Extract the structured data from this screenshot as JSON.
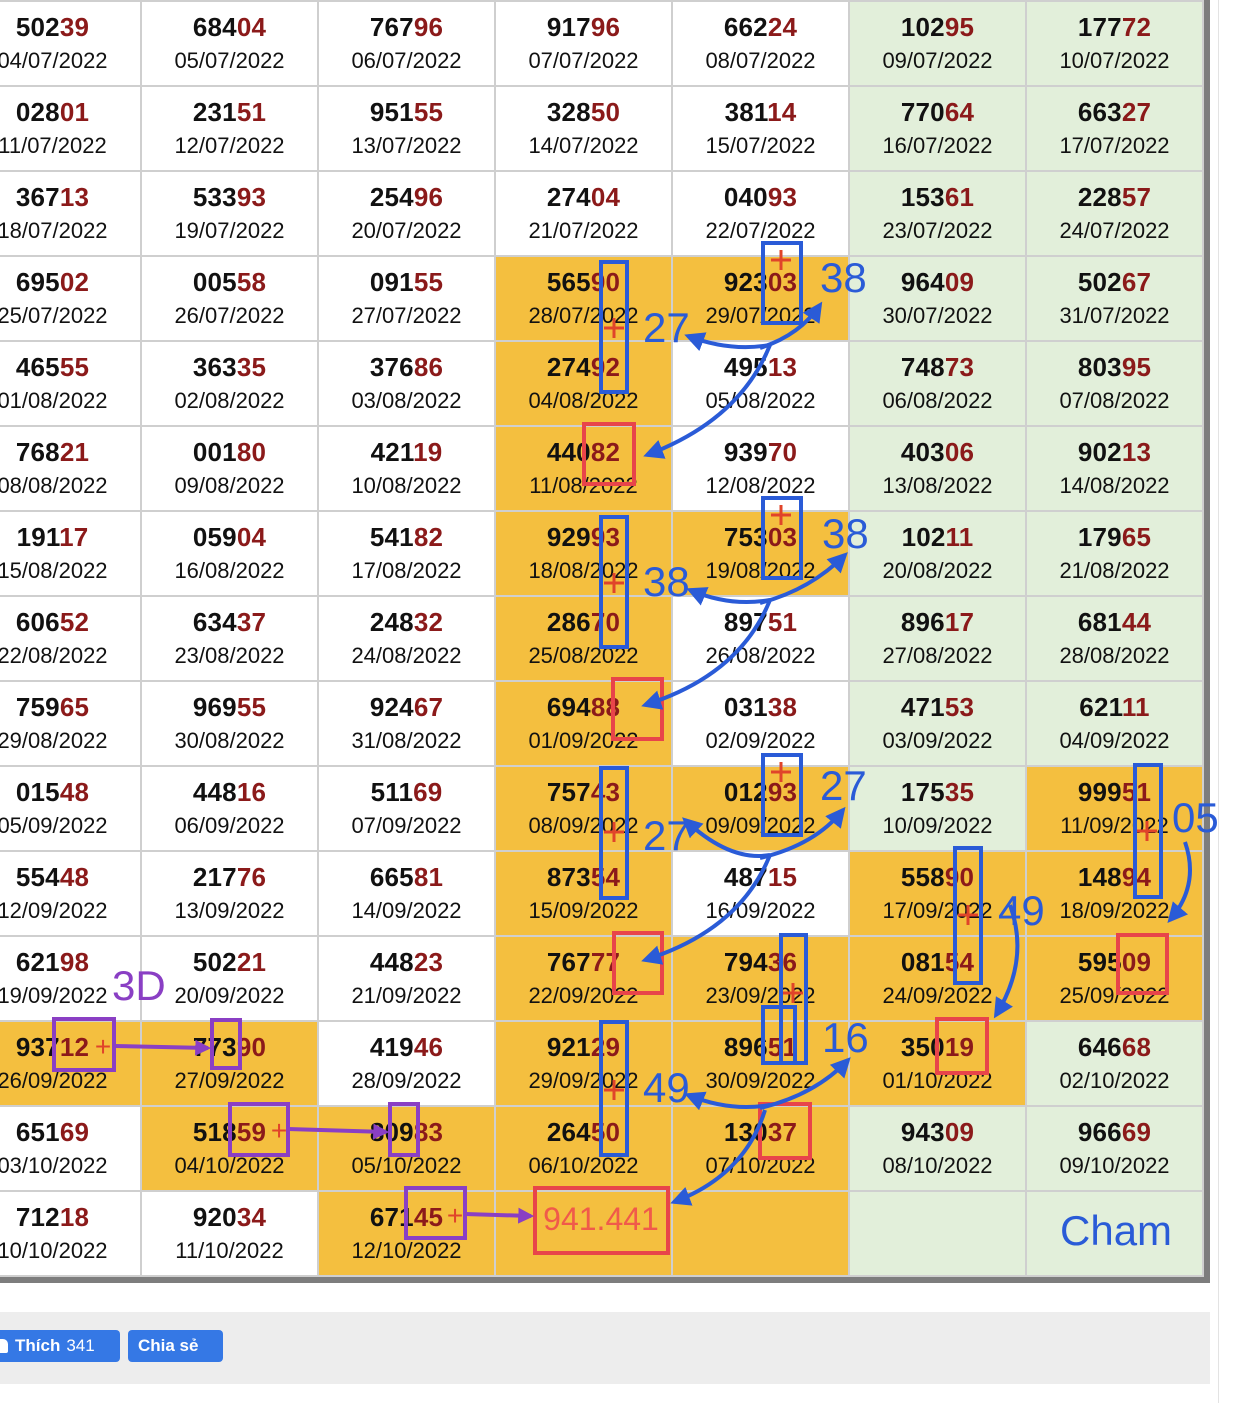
{
  "colors": {
    "white": "#ffffff",
    "green": "#e2efda",
    "orange": "#f4bf3f",
    "tail_red": "#8b1a1a",
    "annot_blue": "#2a5bd7",
    "annot_red": "#e8444a",
    "annot_purple": "#8a3fc4",
    "plus_red": "#e0442a"
  },
  "grid": {
    "rows": [
      [
        {
          "n": "50239",
          "d": "04/07/2022",
          "bg": "white"
        },
        {
          "n": "68404",
          "d": "05/07/2022",
          "bg": "white"
        },
        {
          "n": "76796",
          "d": "06/07/2022",
          "bg": "white"
        },
        {
          "n": "91796",
          "d": "07/07/2022",
          "bg": "white"
        },
        {
          "n": "66224",
          "d": "08/07/2022",
          "bg": "white"
        },
        {
          "n": "10295",
          "d": "09/07/2022",
          "bg": "green"
        },
        {
          "n": "17772",
          "d": "10/07/2022",
          "bg": "green"
        }
      ],
      [
        {
          "n": "02801",
          "d": "11/07/2022",
          "bg": "white"
        },
        {
          "n": "23151",
          "d": "12/07/2022",
          "bg": "white"
        },
        {
          "n": "95155",
          "d": "13/07/2022",
          "bg": "white"
        },
        {
          "n": "32850",
          "d": "14/07/2022",
          "bg": "white"
        },
        {
          "n": "38114",
          "d": "15/07/2022",
          "bg": "white"
        },
        {
          "n": "77064",
          "d": "16/07/2022",
          "bg": "green"
        },
        {
          "n": "66327",
          "d": "17/07/2022",
          "bg": "green"
        }
      ],
      [
        {
          "n": "36713",
          "d": "18/07/2022",
          "bg": "white"
        },
        {
          "n": "53393",
          "d": "19/07/2022",
          "bg": "white"
        },
        {
          "n": "25496",
          "d": "20/07/2022",
          "bg": "white"
        },
        {
          "n": "27404",
          "d": "21/07/2022",
          "bg": "white"
        },
        {
          "n": "04093",
          "d": "22/07/2022",
          "bg": "white"
        },
        {
          "n": "15361",
          "d": "23/07/2022",
          "bg": "green"
        },
        {
          "n": "22857",
          "d": "24/07/2022",
          "bg": "green"
        }
      ],
      [
        {
          "n": "69502",
          "d": "25/07/2022",
          "bg": "white"
        },
        {
          "n": "00558",
          "d": "26/07/2022",
          "bg": "white"
        },
        {
          "n": "09155",
          "d": "27/07/2022",
          "bg": "white"
        },
        {
          "n": "56590",
          "d": "28/07/2022",
          "bg": "orange"
        },
        {
          "n": "92303",
          "d": "29/07/2022",
          "bg": "orange"
        },
        {
          "n": "96409",
          "d": "30/07/2022",
          "bg": "green"
        },
        {
          "n": "50267",
          "d": "31/07/2022",
          "bg": "green"
        }
      ],
      [
        {
          "n": "46555",
          "d": "01/08/2022",
          "bg": "white"
        },
        {
          "n": "36335",
          "d": "02/08/2022",
          "bg": "white"
        },
        {
          "n": "37686",
          "d": "03/08/2022",
          "bg": "white"
        },
        {
          "n": "27492",
          "d": "04/08/2022",
          "bg": "orange"
        },
        {
          "n": "49513",
          "d": "05/08/2022",
          "bg": "white"
        },
        {
          "n": "74873",
          "d": "06/08/2022",
          "bg": "green"
        },
        {
          "n": "80395",
          "d": "07/08/2022",
          "bg": "green"
        }
      ],
      [
        {
          "n": "76821",
          "d": "08/08/2022",
          "bg": "white"
        },
        {
          "n": "00180",
          "d": "09/08/2022",
          "bg": "white"
        },
        {
          "n": "42119",
          "d": "10/08/2022",
          "bg": "white"
        },
        {
          "n": "44082",
          "d": "11/08/2022",
          "bg": "orange"
        },
        {
          "n": "93970",
          "d": "12/08/2022",
          "bg": "white"
        },
        {
          "n": "40306",
          "d": "13/08/2022",
          "bg": "green"
        },
        {
          "n": "90213",
          "d": "14/08/2022",
          "bg": "green"
        }
      ],
      [
        {
          "n": "19117",
          "d": "15/08/2022",
          "bg": "white"
        },
        {
          "n": "05904",
          "d": "16/08/2022",
          "bg": "white"
        },
        {
          "n": "54182",
          "d": "17/08/2022",
          "bg": "white"
        },
        {
          "n": "92993",
          "d": "18/08/2022",
          "bg": "orange"
        },
        {
          "n": "75303",
          "d": "19/08/2022",
          "bg": "orange"
        },
        {
          "n": "10211",
          "d": "20/08/2022",
          "bg": "green"
        },
        {
          "n": "17965",
          "d": "21/08/2022",
          "bg": "green"
        }
      ],
      [
        {
          "n": "60652",
          "d": "22/08/2022",
          "bg": "white"
        },
        {
          "n": "63437",
          "d": "23/08/2022",
          "bg": "white"
        },
        {
          "n": "24832",
          "d": "24/08/2022",
          "bg": "white"
        },
        {
          "n": "28670",
          "d": "25/08/2022",
          "bg": "orange"
        },
        {
          "n": "89751",
          "d": "26/08/2022",
          "bg": "white"
        },
        {
          "n": "89617",
          "d": "27/08/2022",
          "bg": "green"
        },
        {
          "n": "68144",
          "d": "28/08/2022",
          "bg": "green"
        }
      ],
      [
        {
          "n": "75965",
          "d": "29/08/2022",
          "bg": "white"
        },
        {
          "n": "96955",
          "d": "30/08/2022",
          "bg": "white"
        },
        {
          "n": "92467",
          "d": "31/08/2022",
          "bg": "white"
        },
        {
          "n": "69488",
          "d": "01/09/2022",
          "bg": "orange"
        },
        {
          "n": "03138",
          "d": "02/09/2022",
          "bg": "white"
        },
        {
          "n": "47153",
          "d": "03/09/2022",
          "bg": "green"
        },
        {
          "n": "62111",
          "d": "04/09/2022",
          "bg": "green"
        }
      ],
      [
        {
          "n": "01548",
          "d": "05/09/2022",
          "bg": "white"
        },
        {
          "n": "44816",
          "d": "06/09/2022",
          "bg": "white"
        },
        {
          "n": "51169",
          "d": "07/09/2022",
          "bg": "white"
        },
        {
          "n": "75743",
          "d": "08/09/2022",
          "bg": "orange"
        },
        {
          "n": "01293",
          "d": "09/09/2022",
          "bg": "orange"
        },
        {
          "n": "17535",
          "d": "10/09/2022",
          "bg": "green"
        },
        {
          "n": "99951",
          "d": "11/09/2022",
          "bg": "orange"
        }
      ],
      [
        {
          "n": "55448",
          "d": "12/09/2022",
          "bg": "white"
        },
        {
          "n": "21776",
          "d": "13/09/2022",
          "bg": "white"
        },
        {
          "n": "66581",
          "d": "14/09/2022",
          "bg": "white"
        },
        {
          "n": "87354",
          "d": "15/09/2022",
          "bg": "orange"
        },
        {
          "n": "48715",
          "d": "16/09/2022",
          "bg": "white"
        },
        {
          "n": "55890",
          "d": "17/09/2022",
          "bg": "orange"
        },
        {
          "n": "14894",
          "d": "18/09/2022",
          "bg": "orange"
        }
      ],
      [
        {
          "n": "62198",
          "d": "19/09/2022",
          "bg": "white"
        },
        {
          "n": "50221",
          "d": "20/09/2022",
          "bg": "white"
        },
        {
          "n": "44823",
          "d": "21/09/2022",
          "bg": "white"
        },
        {
          "n": "76777",
          "d": "22/09/2022",
          "bg": "orange"
        },
        {
          "n": "79436",
          "d": "23/09/2022",
          "bg": "orange"
        },
        {
          "n": "08154",
          "d": "24/09/2022",
          "bg": "orange"
        },
        {
          "n": "59509",
          "d": "25/09/2022",
          "bg": "orange"
        }
      ],
      [
        {
          "n": "93712",
          "d": "26/09/2022",
          "bg": "orange"
        },
        {
          "n": "77390",
          "d": "27/09/2022",
          "bg": "orange"
        },
        {
          "n": "41946",
          "d": "28/09/2022",
          "bg": "white"
        },
        {
          "n": "92129",
          "d": "29/09/2022",
          "bg": "orange"
        },
        {
          "n": "89651",
          "d": "30/09/2022",
          "bg": "orange"
        },
        {
          "n": "35019",
          "d": "01/10/2022",
          "bg": "orange"
        },
        {
          "n": "64668",
          "d": "02/10/2022",
          "bg": "green"
        }
      ],
      [
        {
          "n": "65169",
          "d": "03/10/2022",
          "bg": "white"
        },
        {
          "n": "51859",
          "d": "04/10/2022",
          "bg": "orange"
        },
        {
          "n": "80983",
          "d": "05/10/2022",
          "bg": "orange"
        },
        {
          "n": "26450",
          "d": "06/10/2022",
          "bg": "orange"
        },
        {
          "n": "13037",
          "d": "07/10/2022",
          "bg": "orange"
        },
        {
          "n": "94309",
          "d": "08/10/2022",
          "bg": "green"
        },
        {
          "n": "96669",
          "d": "09/10/2022",
          "bg": "green"
        }
      ],
      [
        {
          "n": "71218",
          "d": "10/10/2022",
          "bg": "white"
        },
        {
          "n": "92034",
          "d": "11/10/2022",
          "bg": "white"
        },
        {
          "n": "67145",
          "d": "12/10/2022",
          "bg": "orange"
        },
        {
          "n": "",
          "d": "",
          "bg": "orange"
        },
        {
          "n": "",
          "d": "",
          "bg": "orange"
        },
        {
          "n": "",
          "d": "",
          "bg": "green"
        },
        {
          "n": "",
          "d": "",
          "bg": "green"
        }
      ]
    ]
  },
  "annotations": {
    "labels": {
      "a1": "27",
      "a2": "38",
      "b1": "38",
      "b2": "38",
      "c1": "27",
      "c2": "27",
      "d1": "49",
      "d2": "16",
      "e1": "49",
      "f1": "05",
      "cham": "Cham",
      "three_d": "3D",
      "prediction": "941.441",
      "plus": "+"
    }
  },
  "share": {
    "like_label": "Thích",
    "like_count": "341",
    "share_label": "Chia sẻ",
    "like_icon": "thumbs-up-icon"
  }
}
